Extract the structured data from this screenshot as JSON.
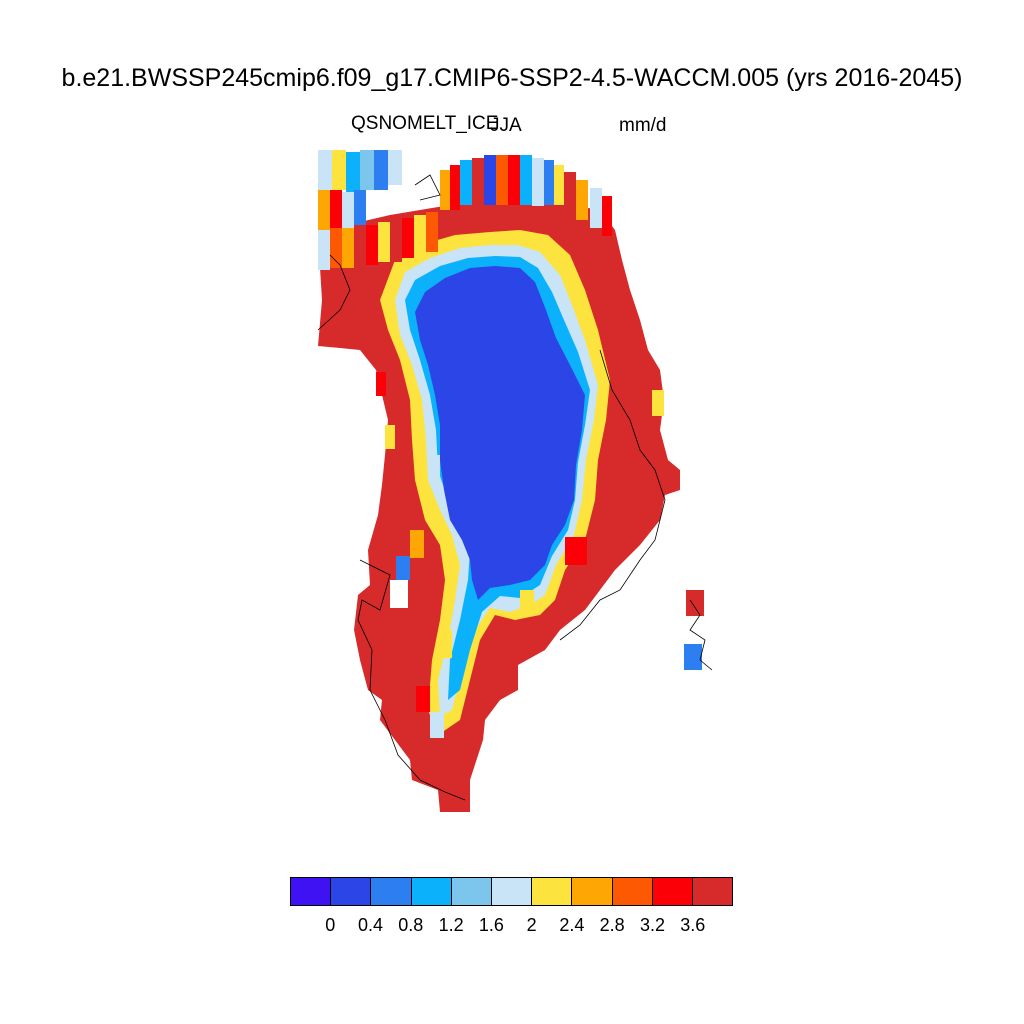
{
  "title": "b.e21.BWSSP245cmip6.f09_g17.CMIP6-SSP2-4.5-WACCM.005 (yrs 2016-2045)",
  "left_string": "QSNOMELT_ICE",
  "center_string": "JJA",
  "right_string": "mm/d",
  "colorbar": {
    "colors": [
      "#3f12f3",
      "#2c45e6",
      "#2c7ef1",
      "#0bb2fb",
      "#7cc6ee",
      "#c8e4f6",
      "#fde33d",
      "#fda604",
      "#fd5903",
      "#fc0008",
      "#d72a2a"
    ],
    "ticks": [
      "0",
      "0.4",
      "0.8",
      "1.2",
      "1.6",
      "2",
      "2.4",
      "2.8",
      "3.2",
      "3.6"
    ]
  },
  "map": {
    "region": "Greenland",
    "field": "snowmelt over ice, mm/d",
    "pattern": "interior near 0.4 mm/d, margins above 3.6 mm/d"
  }
}
